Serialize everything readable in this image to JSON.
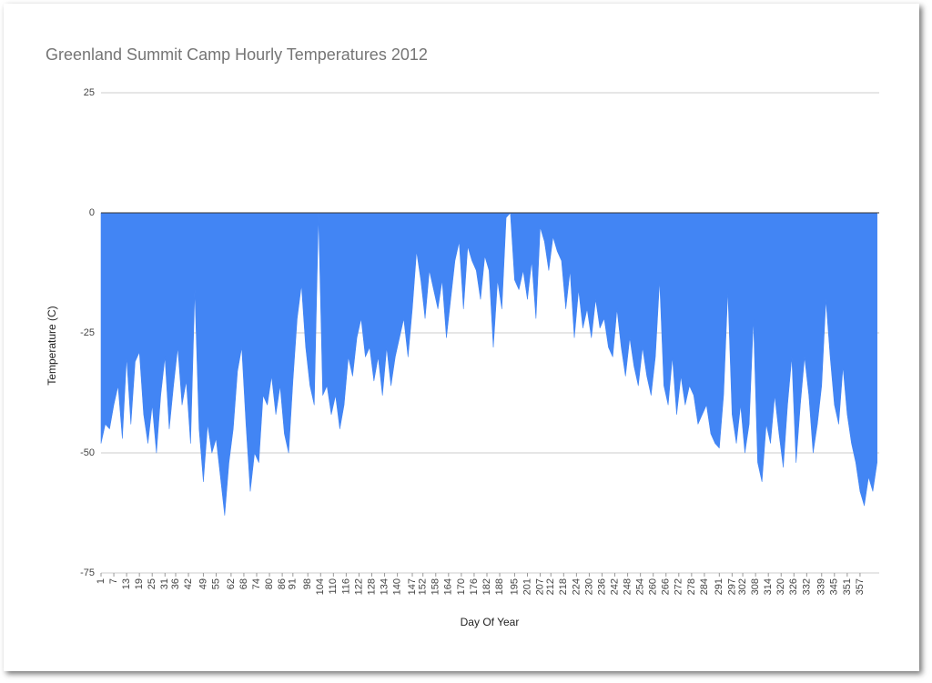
{
  "chart_data": {
    "type": "area",
    "title": "Greenland Summit Camp Hourly Temperatures 2012",
    "x_label": "Day Of Year",
    "y_label": "Temperature (C)",
    "color": "#4285f4",
    "grid": true,
    "xlim": [
      1,
      366
    ],
    "ylim": [
      -75,
      25
    ],
    "yticks": [
      -75,
      -50,
      -25,
      0,
      25
    ],
    "xticks": [
      1,
      7,
      13,
      19,
      25,
      31,
      36,
      42,
      49,
      55,
      62,
      68,
      74,
      80,
      86,
      91,
      98,
      104,
      110,
      116,
      122,
      128,
      134,
      140,
      147,
      152,
      158,
      164,
      170,
      176,
      182,
      188,
      195,
      201,
      207,
      212,
      218,
      224,
      230,
      236,
      242,
      248,
      254,
      260,
      266,
      272,
      278,
      284,
      291,
      297,
      302,
      308,
      314,
      320,
      326,
      332,
      339,
      345,
      351,
      357
    ],
    "x": [
      1,
      3,
      5,
      7,
      9,
      11,
      13,
      15,
      17,
      19,
      21,
      23,
      25,
      27,
      29,
      31,
      33,
      35,
      37,
      39,
      41,
      43,
      45,
      47,
      49,
      51,
      53,
      55,
      57,
      59,
      61,
      63,
      65,
      67,
      69,
      71,
      73,
      75,
      77,
      79,
      81,
      83,
      85,
      87,
      89,
      91,
      93,
      95,
      97,
      99,
      101,
      103,
      105,
      107,
      109,
      111,
      113,
      115,
      117,
      119,
      121,
      123,
      125,
      127,
      129,
      131,
      133,
      135,
      137,
      139,
      141,
      143,
      145,
      147,
      149,
      151,
      153,
      155,
      157,
      159,
      161,
      163,
      165,
      167,
      169,
      171,
      173,
      175,
      177,
      179,
      181,
      183,
      185,
      187,
      189,
      191,
      193,
      195,
      197,
      199,
      201,
      203,
      205,
      207,
      209,
      211,
      213,
      215,
      217,
      219,
      221,
      223,
      225,
      227,
      229,
      231,
      233,
      235,
      237,
      239,
      241,
      243,
      245,
      247,
      249,
      251,
      253,
      255,
      257,
      259,
      261,
      263,
      265,
      267,
      269,
      271,
      273,
      275,
      277,
      279,
      281,
      283,
      285,
      287,
      289,
      291,
      293,
      295,
      297,
      299,
      301,
      303,
      305,
      307,
      309,
      311,
      313,
      315,
      317,
      319,
      321,
      323,
      325,
      327,
      329,
      331,
      333,
      335,
      337,
      339,
      341,
      343,
      345,
      347,
      349,
      351,
      353,
      355,
      357,
      359,
      361,
      363,
      365
    ],
    "values": [
      -48,
      -44,
      -45,
      -40,
      -36,
      -47,
      -30,
      -44,
      -31,
      -29,
      -42,
      -48,
      -40,
      -50,
      -38,
      -30,
      -45,
      -36,
      -28,
      -40,
      -35,
      -48,
      -16,
      -45,
      -56,
      -44,
      -50,
      -47,
      -55,
      -63,
      -52,
      -45,
      -33,
      -28,
      -44,
      -58,
      -50,
      -52,
      -38,
      -40,
      -34,
      -42,
      -36,
      -46,
      -50,
      -35,
      -22,
      -15,
      -28,
      -36,
      -40,
      0,
      -38,
      -36,
      -42,
      -38,
      -45,
      -40,
      -30,
      -34,
      -26,
      -22,
      -30,
      -28,
      -35,
      -30,
      -38,
      -28,
      -36,
      -30,
      -26,
      -22,
      -30,
      -20,
      -8,
      -14,
      -22,
      -12,
      -16,
      -20,
      -14,
      -26,
      -18,
      -10,
      -6,
      -20,
      -7,
      -10,
      -12,
      -18,
      -9,
      -12,
      -28,
      -14,
      -20,
      -1,
      0,
      -14,
      -16,
      -12,
      -18,
      -10,
      -22,
      -3,
      -6,
      -12,
      -5,
      -8,
      -10,
      -20,
      -12,
      -26,
      -16,
      -24,
      -20,
      -26,
      -18,
      -24,
      -22,
      -28,
      -30,
      -20,
      -28,
      -34,
      -26,
      -32,
      -36,
      -28,
      -34,
      -38,
      -30,
      -14,
      -36,
      -40,
      -30,
      -42,
      -34,
      -40,
      -36,
      -38,
      -44,
      -42,
      -40,
      -46,
      -48,
      -49,
      -38,
      -16,
      -42,
      -48,
      -40,
      -50,
      -44,
      -22,
      -52,
      -56,
      -44,
      -48,
      -38,
      -46,
      -53,
      -40,
      -30,
      -52,
      -40,
      -30,
      -38,
      -50,
      -44,
      -36,
      -18,
      -30,
      -40,
      -44,
      -32,
      -42,
      -48,
      -52,
      -58,
      -61,
      -55,
      -58,
      -52
    ]
  }
}
